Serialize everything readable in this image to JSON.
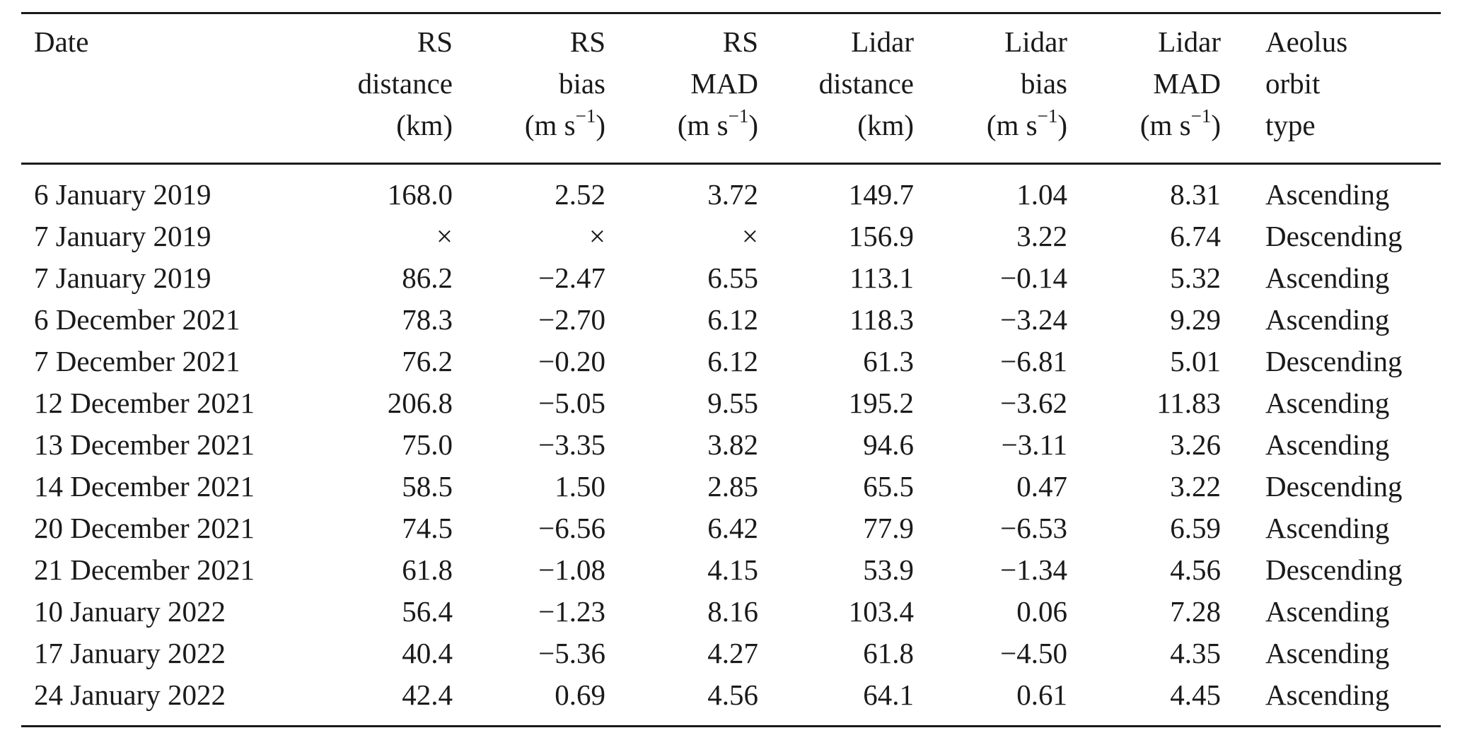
{
  "table": {
    "headers": [
      {
        "lines": [
          "Date"
        ]
      },
      {
        "lines": [
          "RS",
          "distance",
          "(km)"
        ]
      },
      {
        "lines": [
          "RS",
          "bias"
        ],
        "unit_pre": "(m s",
        "unit_sup": "−1",
        "unit_post": ")"
      },
      {
        "lines": [
          "RS",
          "MAD"
        ],
        "unit_pre": "(m s",
        "unit_sup": "−1",
        "unit_post": ")"
      },
      {
        "lines": [
          "Lidar",
          "distance",
          "(km)"
        ]
      },
      {
        "lines": [
          "Lidar",
          "bias"
        ],
        "unit_pre": "(m s",
        "unit_sup": "−1",
        "unit_post": ")"
      },
      {
        "lines": [
          "Lidar",
          "MAD"
        ],
        "unit_pre": "(m s",
        "unit_sup": "−1",
        "unit_post": ")"
      },
      {
        "lines": [
          "Aeolus",
          "orbit",
          "type"
        ]
      }
    ],
    "rows": [
      [
        "6 January 2019",
        "168.0",
        "2.52",
        "3.72",
        "149.7",
        "1.04",
        "8.31",
        "Ascending"
      ],
      [
        "7 January 2019",
        "×",
        "×",
        "×",
        "156.9",
        "3.22",
        "6.74",
        "Descending"
      ],
      [
        "7 January 2019",
        "86.2",
        "−2.47",
        "6.55",
        "113.1",
        "−0.14",
        "5.32",
        "Ascending"
      ],
      [
        "6 December 2021",
        "78.3",
        "−2.70",
        "6.12",
        "118.3",
        "−3.24",
        "9.29",
        "Ascending"
      ],
      [
        "7 December 2021",
        "76.2",
        "−0.20",
        "6.12",
        "61.3",
        "−6.81",
        "5.01",
        "Descending"
      ],
      [
        "12 December 2021",
        "206.8",
        "−5.05",
        "9.55",
        "195.2",
        "−3.62",
        "11.83",
        "Ascending"
      ],
      [
        "13 December 2021",
        "75.0",
        "−3.35",
        "3.82",
        "94.6",
        "−3.11",
        "3.26",
        "Ascending"
      ],
      [
        "14 December 2021",
        "58.5",
        "1.50",
        "2.85",
        "65.5",
        "0.47",
        "3.22",
        "Descending"
      ],
      [
        "20 December 2021",
        "74.5",
        "−6.56",
        "6.42",
        "77.9",
        "−6.53",
        "6.59",
        "Ascending"
      ],
      [
        "21 December 2021",
        "61.8",
        "−1.08",
        "4.15",
        "53.9",
        "−1.34",
        "4.56",
        "Descending"
      ],
      [
        "10 January 2022",
        "56.4",
        "−1.23",
        "8.16",
        "103.4",
        "0.06",
        "7.28",
        "Ascending"
      ],
      [
        "17 January 2022",
        "40.4",
        "−5.36",
        "4.27",
        "61.8",
        "−4.50",
        "4.35",
        "Ascending"
      ],
      [
        "24 January 2022",
        "42.4",
        "0.69",
        "4.56",
        "64.1",
        "0.61",
        "4.45",
        "Ascending"
      ]
    ]
  }
}
